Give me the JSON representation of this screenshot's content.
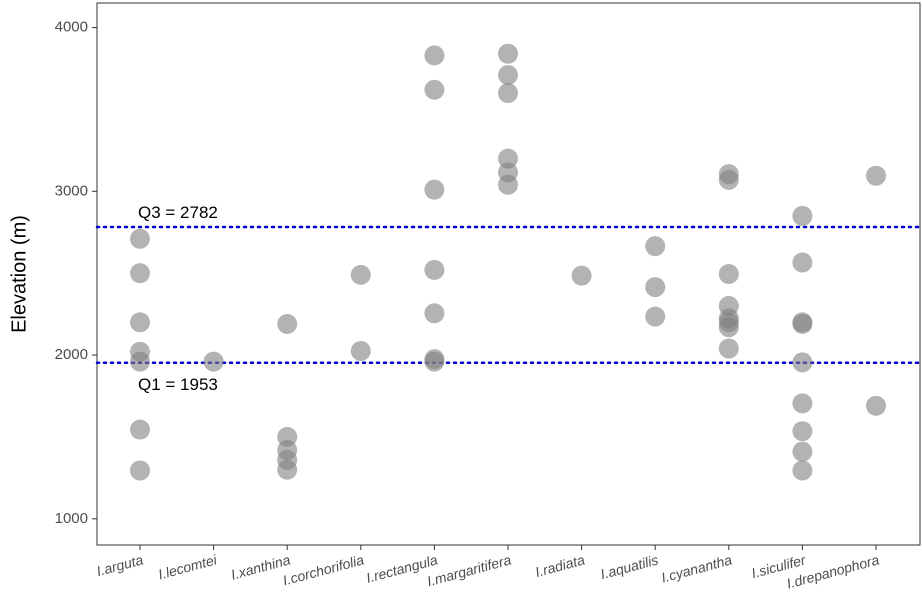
{
  "chart_data": {
    "type": "scatter",
    "title": "",
    "xlabel": "",
    "ylabel": "Elevation (m)",
    "ylim": [
      840,
      4150
    ],
    "yticks": [
      1000,
      2000,
      3000,
      4000
    ],
    "grid": false,
    "categories": [
      "I.arguta",
      "I.lecomtei",
      "I.xanthina",
      "I.corchorifolia",
      "I.rectangula",
      "I.margaritifera",
      "I.radiata",
      "I.aquatilis",
      "I.cyanantha",
      "I.siculifer",
      "I.drepanophora"
    ],
    "points": [
      [
        2710,
        2500,
        2200,
        2020,
        1960,
        1545,
        1295
      ],
      [
        1960
      ],
      [
        2190,
        1500,
        1420,
        1360,
        1300
      ],
      [
        2490,
        2025
      ],
      [
        3830,
        3620,
        3010,
        2520,
        2255,
        1975,
        1960
      ],
      [
        3840,
        3710,
        3600,
        3200,
        3115,
        3040
      ],
      [
        2485
      ],
      [
        2665,
        2415,
        2235
      ],
      [
        3105,
        3070,
        2495,
        2300,
        2225,
        2200,
        2170,
        2040
      ],
      [
        2850,
        2565,
        2200,
        2190,
        1955,
        1705,
        1535,
        1410,
        1295
      ],
      [
        3095,
        1690
      ]
    ],
    "reference_lines": [
      {
        "value": 2782,
        "label": "Q3 = 2782",
        "label_position": "above",
        "color": "#0000cd",
        "style": "dotted"
      },
      {
        "value": 1953,
        "label": "Q1 = 1953",
        "label_position": "below",
        "color": "#0000cd",
        "style": "dotted"
      }
    ],
    "point_color": "#808080",
    "point_opacity": 0.6
  }
}
